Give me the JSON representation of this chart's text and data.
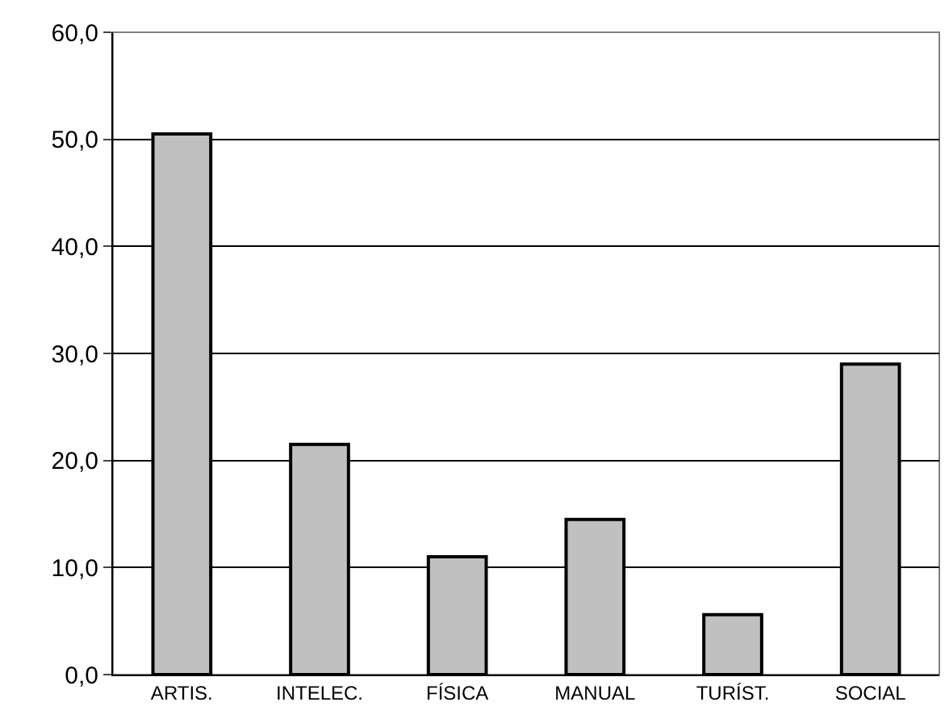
{
  "chart_data": {
    "type": "bar",
    "categories": [
      "ARTIS.",
      "INTELEC.",
      "FÍSICA",
      "MANUAL",
      "TURÍST.",
      "SOCIAL"
    ],
    "values": [
      50.5,
      21.5,
      11.0,
      14.5,
      5.6,
      29.0
    ],
    "color": "#c0c0c0",
    "ylim": [
      0,
      60
    ],
    "yticks": [
      {
        "value": 0,
        "label": "0,0"
      },
      {
        "value": 10,
        "label": "10,0"
      },
      {
        "value": 20,
        "label": "20,0"
      },
      {
        "value": 30,
        "label": "30,0"
      },
      {
        "value": 40,
        "label": "40,0"
      },
      {
        "value": 50,
        "label": "50,0"
      },
      {
        "value": 60,
        "label": "60,0"
      }
    ],
    "grid": "y"
  }
}
